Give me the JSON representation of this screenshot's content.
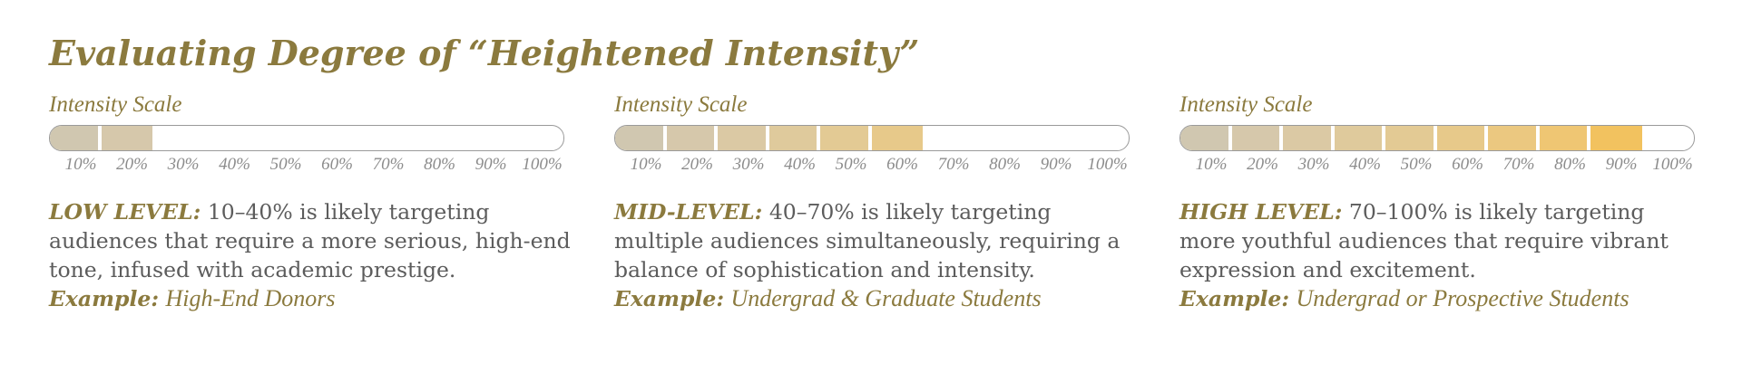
{
  "title": "Evaluating Degree of “Heightened Intensity”",
  "scale_label": "Intensity Scale",
  "ticks": [
    "10%",
    "20%",
    "30%",
    "40%",
    "50%",
    "60%",
    "70%",
    "80%",
    "90%",
    "100%"
  ],
  "colors": {
    "title": "#8b7a3e",
    "body_text": "#5c5c5c",
    "tick_text": "#8c8c8c",
    "bar_border": "#9a9a9a",
    "segments": [
      "#d0c7b0",
      "#d6c8ab",
      "#dbc9a4",
      "#dfca9c",
      "#e3ca94",
      "#e7c98a",
      "#ebc880",
      "#efc673",
      "#f2c25f"
    ]
  },
  "levels": [
    {
      "filled_segments": 2,
      "label": "LOW LEVEL:",
      "description": " 10–40% is likely targeting audiences that require a more serious, high-end tone, infused with academic prestige.",
      "example_label": "Example:",
      "example": "High-End Donors"
    },
    {
      "filled_segments": 6,
      "label": "MID-LEVEL:",
      "description": " 40–70% is likely targeting multiple audiences simultaneously,  requiring a balance of sophistication and intensity.",
      "example_label": "Example:",
      "example": "Undergrad & Graduate Students"
    },
    {
      "filled_segments": 9,
      "label": "HIGH LEVEL:",
      "description": " 70–100% is likely targeting more youthful audiences that require vibrant expression and excitement.",
      "example_label": "Example:",
      "example": "Undergrad or Prospective Students"
    }
  ]
}
